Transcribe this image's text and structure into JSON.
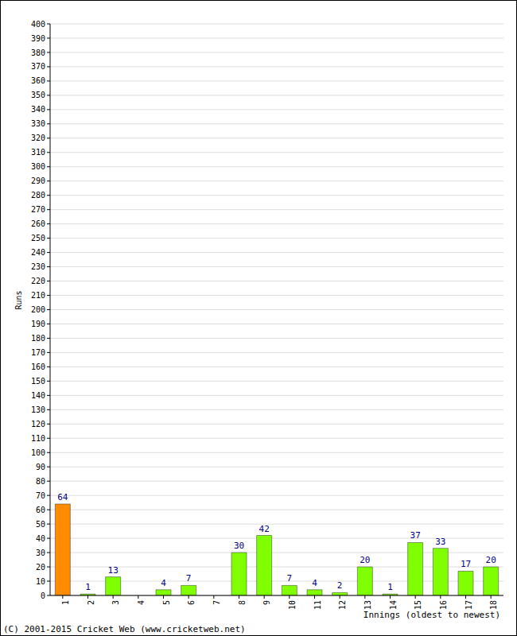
{
  "chart_data": {
    "type": "bar",
    "categories": [
      "1",
      "2",
      "3",
      "4",
      "5",
      "6",
      "7",
      "8",
      "9",
      "10",
      "11",
      "12",
      "13",
      "14",
      "15",
      "16",
      "17",
      "18"
    ],
    "values": [
      64,
      1,
      13,
      0,
      4,
      7,
      0,
      30,
      42,
      7,
      4,
      2,
      20,
      1,
      37,
      33,
      17,
      20
    ],
    "colors": [
      "#ff8c00",
      "#80ff00",
      "#80ff00",
      "#80ff00",
      "#80ff00",
      "#80ff00",
      "#80ff00",
      "#80ff00",
      "#80ff00",
      "#80ff00",
      "#80ff00",
      "#80ff00",
      "#80ff00",
      "#80ff00",
      "#80ff00",
      "#80ff00",
      "#80ff00",
      "#80ff00"
    ],
    "ylabel": "Runs",
    "xlabel": "Innings (oldest to newest)",
    "annotations": [
      "(C) 2001-2015 Cricket Web (www.cricketweb.net)"
    ],
    "ylim": [
      0,
      400
    ],
    "yticks": [
      0,
      10,
      20,
      30,
      40,
      50,
      60,
      70,
      80,
      90,
      100,
      110,
      120,
      130,
      140,
      150,
      160,
      170,
      180,
      190,
      200,
      210,
      220,
      230,
      240,
      250,
      260,
      270,
      280,
      290,
      300,
      310,
      320,
      330,
      340,
      350,
      360,
      370,
      380,
      390,
      400
    ],
    "grid": true,
    "data_labels": true
  }
}
